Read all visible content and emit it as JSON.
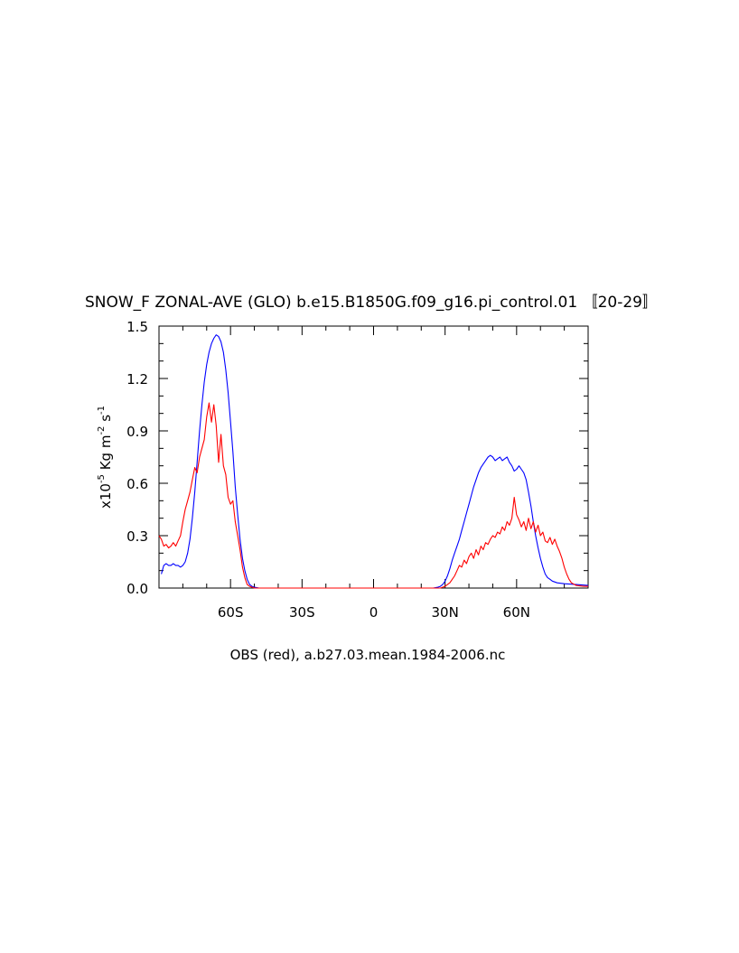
{
  "chart_data": {
    "type": "line",
    "title": "SNOW_F ZONAL-AVE (GLO) b.e15.B1850G.f09_g16.pi_control.01 〚20-29〛",
    "xlabel": "OBS (red), a.b27.03.mean.1984-2006.nc",
    "ylabel_parts": {
      "prefix": "x10",
      "exp1": "-5",
      "mid": " Kg m",
      "exp2": "-2",
      "mid2": " s",
      "exp3": "-1"
    },
    "xlim": [
      -90,
      90
    ],
    "ylim": [
      0,
      1.5
    ],
    "xticks": [
      -60,
      -30,
      0,
      30,
      60
    ],
    "xtick_labels": [
      "60S",
      "30S",
      "0",
      "30N",
      "60N"
    ],
    "yticks": [
      0,
      0.3,
      0.6,
      0.9,
      1.2,
      1.5
    ],
    "ytick_labels": [
      "0.0",
      "0.3",
      "0.6",
      "0.9",
      "1.2",
      "1.5"
    ],
    "grid": false,
    "series": [
      {
        "color": "#0000ff",
        "points": [
          [
            -89,
            0.08
          ],
          [
            -88,
            0.13
          ],
          [
            -87,
            0.14
          ],
          [
            -86,
            0.13
          ],
          [
            -85,
            0.13
          ],
          [
            -84,
            0.14
          ],
          [
            -83,
            0.13
          ],
          [
            -82,
            0.13
          ],
          [
            -81,
            0.12
          ],
          [
            -80,
            0.13
          ],
          [
            -79,
            0.15
          ],
          [
            -78,
            0.2
          ],
          [
            -77,
            0.28
          ],
          [
            -76,
            0.4
          ],
          [
            -75,
            0.55
          ],
          [
            -74,
            0.72
          ],
          [
            -73,
            0.9
          ],
          [
            -72,
            1.05
          ],
          [
            -71,
            1.18
          ],
          [
            -70,
            1.28
          ],
          [
            -69,
            1.35
          ],
          [
            -68,
            1.4
          ],
          [
            -67,
            1.43
          ],
          [
            -66,
            1.45
          ],
          [
            -65,
            1.44
          ],
          [
            -64,
            1.41
          ],
          [
            -63,
            1.35
          ],
          [
            -62,
            1.25
          ],
          [
            -61,
            1.12
          ],
          [
            -60,
            0.95
          ],
          [
            -59,
            0.78
          ],
          [
            -58,
            0.58
          ],
          [
            -57,
            0.42
          ],
          [
            -56,
            0.28
          ],
          [
            -55,
            0.17
          ],
          [
            -54,
            0.1
          ],
          [
            -53,
            0.05
          ],
          [
            -52,
            0.02
          ],
          [
            -51,
            0.01
          ],
          [
            -50,
            0.005
          ],
          [
            -48,
            0.0
          ],
          [
            -30,
            0.0
          ],
          [
            0,
            0.0
          ],
          [
            25,
            0.0
          ],
          [
            27,
            0.005
          ],
          [
            28,
            0.01
          ],
          [
            29,
            0.02
          ],
          [
            30,
            0.04
          ],
          [
            31,
            0.07
          ],
          [
            32,
            0.11
          ],
          [
            33,
            0.16
          ],
          [
            34,
            0.2
          ],
          [
            35,
            0.24
          ],
          [
            36,
            0.28
          ],
          [
            37,
            0.33
          ],
          [
            38,
            0.38
          ],
          [
            39,
            0.43
          ],
          [
            40,
            0.48
          ],
          [
            41,
            0.53
          ],
          [
            42,
            0.58
          ],
          [
            43,
            0.62
          ],
          [
            44,
            0.66
          ],
          [
            45,
            0.69
          ],
          [
            46,
            0.71
          ],
          [
            47,
            0.73
          ],
          [
            48,
            0.75
          ],
          [
            49,
            0.76
          ],
          [
            50,
            0.75
          ],
          [
            51,
            0.73
          ],
          [
            52,
            0.74
          ],
          [
            53,
            0.75
          ],
          [
            54,
            0.73
          ],
          [
            55,
            0.74
          ],
          [
            56,
            0.75
          ],
          [
            57,
            0.72
          ],
          [
            58,
            0.7
          ],
          [
            59,
            0.67
          ],
          [
            60,
            0.68
          ],
          [
            61,
            0.7
          ],
          [
            62,
            0.68
          ],
          [
            63,
            0.66
          ],
          [
            64,
            0.62
          ],
          [
            65,
            0.55
          ],
          [
            66,
            0.47
          ],
          [
            67,
            0.38
          ],
          [
            68,
            0.3
          ],
          [
            69,
            0.23
          ],
          [
            70,
            0.17
          ],
          [
            71,
            0.12
          ],
          [
            72,
            0.08
          ],
          [
            73,
            0.06
          ],
          [
            74,
            0.05
          ],
          [
            75,
            0.04
          ],
          [
            77,
            0.03
          ],
          [
            80,
            0.025
          ],
          [
            85,
            0.02
          ],
          [
            90,
            0.015
          ]
        ]
      },
      {
        "color": "#ff0000",
        "points": [
          [
            -90,
            0.3
          ],
          [
            -89,
            0.28
          ],
          [
            -88,
            0.24
          ],
          [
            -87,
            0.25
          ],
          [
            -86,
            0.23
          ],
          [
            -85,
            0.24
          ],
          [
            -84,
            0.26
          ],
          [
            -83,
            0.24
          ],
          [
            -82,
            0.27
          ],
          [
            -81,
            0.3
          ],
          [
            -80,
            0.38
          ],
          [
            -79,
            0.45
          ],
          [
            -78,
            0.5
          ],
          [
            -77,
            0.55
          ],
          [
            -76,
            0.62
          ],
          [
            -75,
            0.69
          ],
          [
            -74,
            0.66
          ],
          [
            -73,
            0.75
          ],
          [
            -72,
            0.8
          ],
          [
            -71,
            0.85
          ],
          [
            -70,
            0.98
          ],
          [
            -69,
            1.06
          ],
          [
            -68,
            0.95
          ],
          [
            -67,
            1.05
          ],
          [
            -66,
            0.93
          ],
          [
            -65,
            0.72
          ],
          [
            -64,
            0.88
          ],
          [
            -63,
            0.7
          ],
          [
            -62,
            0.65
          ],
          [
            -61,
            0.52
          ],
          [
            -60,
            0.48
          ],
          [
            -59,
            0.5
          ],
          [
            -58,
            0.38
          ],
          [
            -57,
            0.3
          ],
          [
            -56,
            0.22
          ],
          [
            -55,
            0.12
          ],
          [
            -54,
            0.06
          ],
          [
            -53,
            0.02
          ],
          [
            -52,
            0.01
          ],
          [
            -50,
            0.0
          ],
          [
            -20,
            0.0
          ],
          [
            0,
            0.0
          ],
          [
            28,
            0.0
          ],
          [
            30,
            0.01
          ],
          [
            31,
            0.02
          ],
          [
            32,
            0.03
          ],
          [
            33,
            0.05
          ],
          [
            34,
            0.07
          ],
          [
            35,
            0.1
          ],
          [
            36,
            0.13
          ],
          [
            37,
            0.12
          ],
          [
            38,
            0.16
          ],
          [
            39,
            0.14
          ],
          [
            40,
            0.18
          ],
          [
            41,
            0.2
          ],
          [
            42,
            0.17
          ],
          [
            43,
            0.22
          ],
          [
            44,
            0.19
          ],
          [
            45,
            0.24
          ],
          [
            46,
            0.22
          ],
          [
            47,
            0.26
          ],
          [
            48,
            0.25
          ],
          [
            49,
            0.28
          ],
          [
            50,
            0.3
          ],
          [
            51,
            0.29
          ],
          [
            52,
            0.32
          ],
          [
            53,
            0.31
          ],
          [
            54,
            0.35
          ],
          [
            55,
            0.33
          ],
          [
            56,
            0.38
          ],
          [
            57,
            0.36
          ],
          [
            58,
            0.4
          ],
          [
            59,
            0.52
          ],
          [
            60,
            0.42
          ],
          [
            61,
            0.39
          ],
          [
            62,
            0.35
          ],
          [
            63,
            0.38
          ],
          [
            64,
            0.33
          ],
          [
            65,
            0.4
          ],
          [
            66,
            0.34
          ],
          [
            67,
            0.38
          ],
          [
            68,
            0.32
          ],
          [
            69,
            0.36
          ],
          [
            70,
            0.3
          ],
          [
            71,
            0.32
          ],
          [
            72,
            0.27
          ],
          [
            73,
            0.26
          ],
          [
            74,
            0.29
          ],
          [
            75,
            0.25
          ],
          [
            76,
            0.28
          ],
          [
            77,
            0.24
          ],
          [
            78,
            0.21
          ],
          [
            79,
            0.17
          ],
          [
            80,
            0.12
          ],
          [
            81,
            0.08
          ],
          [
            82,
            0.05
          ],
          [
            83,
            0.03
          ],
          [
            85,
            0.015
          ],
          [
            88,
            0.01
          ],
          [
            90,
            0.01
          ]
        ]
      }
    ]
  }
}
